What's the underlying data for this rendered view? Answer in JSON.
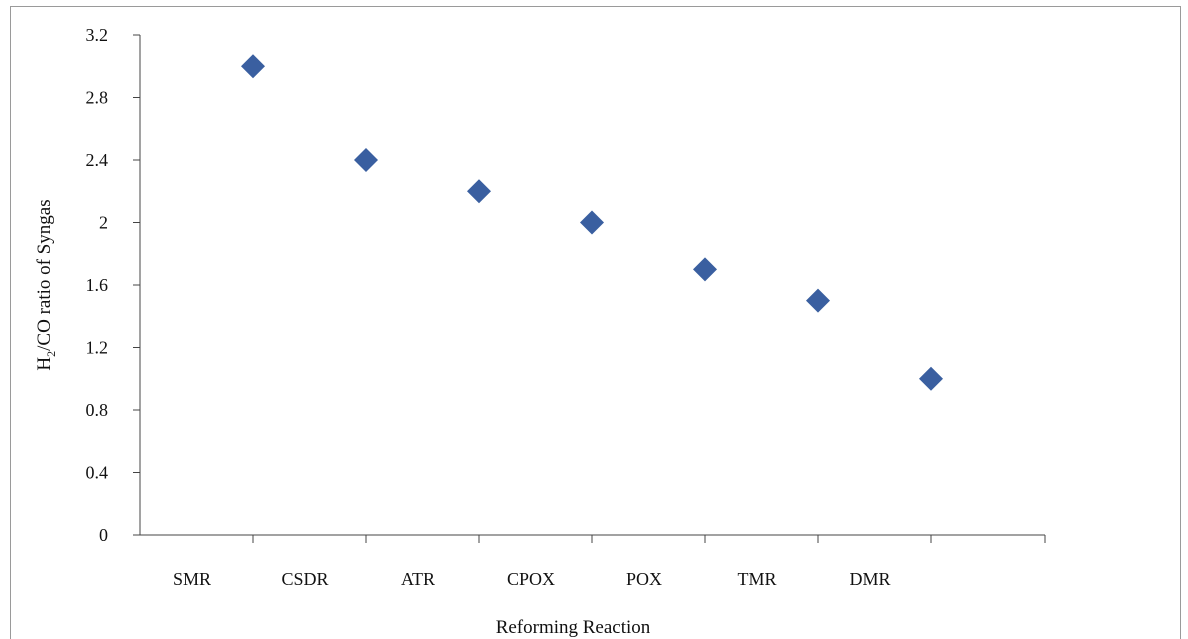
{
  "chart_data": {
    "type": "scatter",
    "title": "",
    "xlabel": "Reforming Reaction",
    "ylabel_main": "H",
    "ylabel_sub": "2",
    "ylabel_rest": "/CO ratio of Syngas",
    "categories": [
      "SMR",
      "CSDR",
      "ATR",
      "CPOX",
      "POX",
      "TMR",
      "DMR"
    ],
    "values": [
      3.0,
      2.4,
      2.2,
      2.0,
      1.7,
      1.5,
      1.0
    ],
    "ylim": [
      0,
      3.2
    ],
    "yticks": [
      "0",
      "0.4",
      "0.8",
      "1.2",
      "1.6",
      "2",
      "2.4",
      "2.8",
      "3.2"
    ],
    "ytick_values": [
      0,
      0.4,
      0.8,
      1.2,
      1.6,
      2.0,
      2.4,
      2.8,
      3.2
    ],
    "grid": false,
    "legend": "none",
    "marker": "diamond",
    "marker_color": "#3a5fa0"
  }
}
